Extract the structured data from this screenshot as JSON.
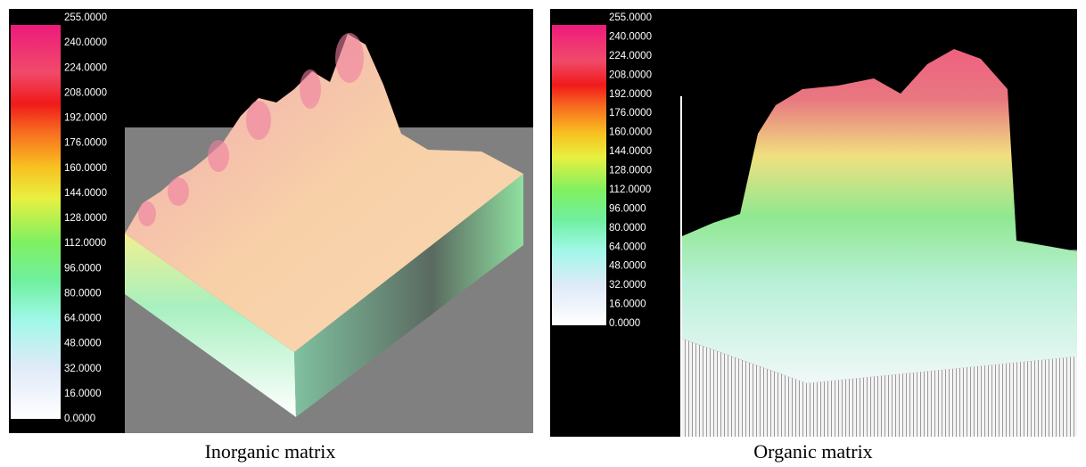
{
  "panels": [
    {
      "colorbar_labels": [
        "255.0000",
        "240.0000",
        "224.0000",
        "208.0000",
        "192.0000",
        "176.0000",
        "160.0000",
        "144.0000",
        "128.0000",
        "112.0000",
        "96.0000",
        "80.0000",
        "64.0000",
        "48.0000",
        "32.0000",
        "16.0000",
        "0.0000"
      ],
      "caption": "Inorganic matrix"
    },
    {
      "colorbar_labels": [
        "255.0000",
        "240.0000",
        "224.0000",
        "208.0000",
        "192.0000",
        "176.0000",
        "160.0000",
        "144.0000",
        "128.0000",
        "112.0000",
        "96.0000",
        "80.0000",
        "64.0000",
        "48.0000",
        "32.0000",
        "16.0000",
        "0.0000"
      ],
      "caption": "Organic matrix"
    }
  ]
}
